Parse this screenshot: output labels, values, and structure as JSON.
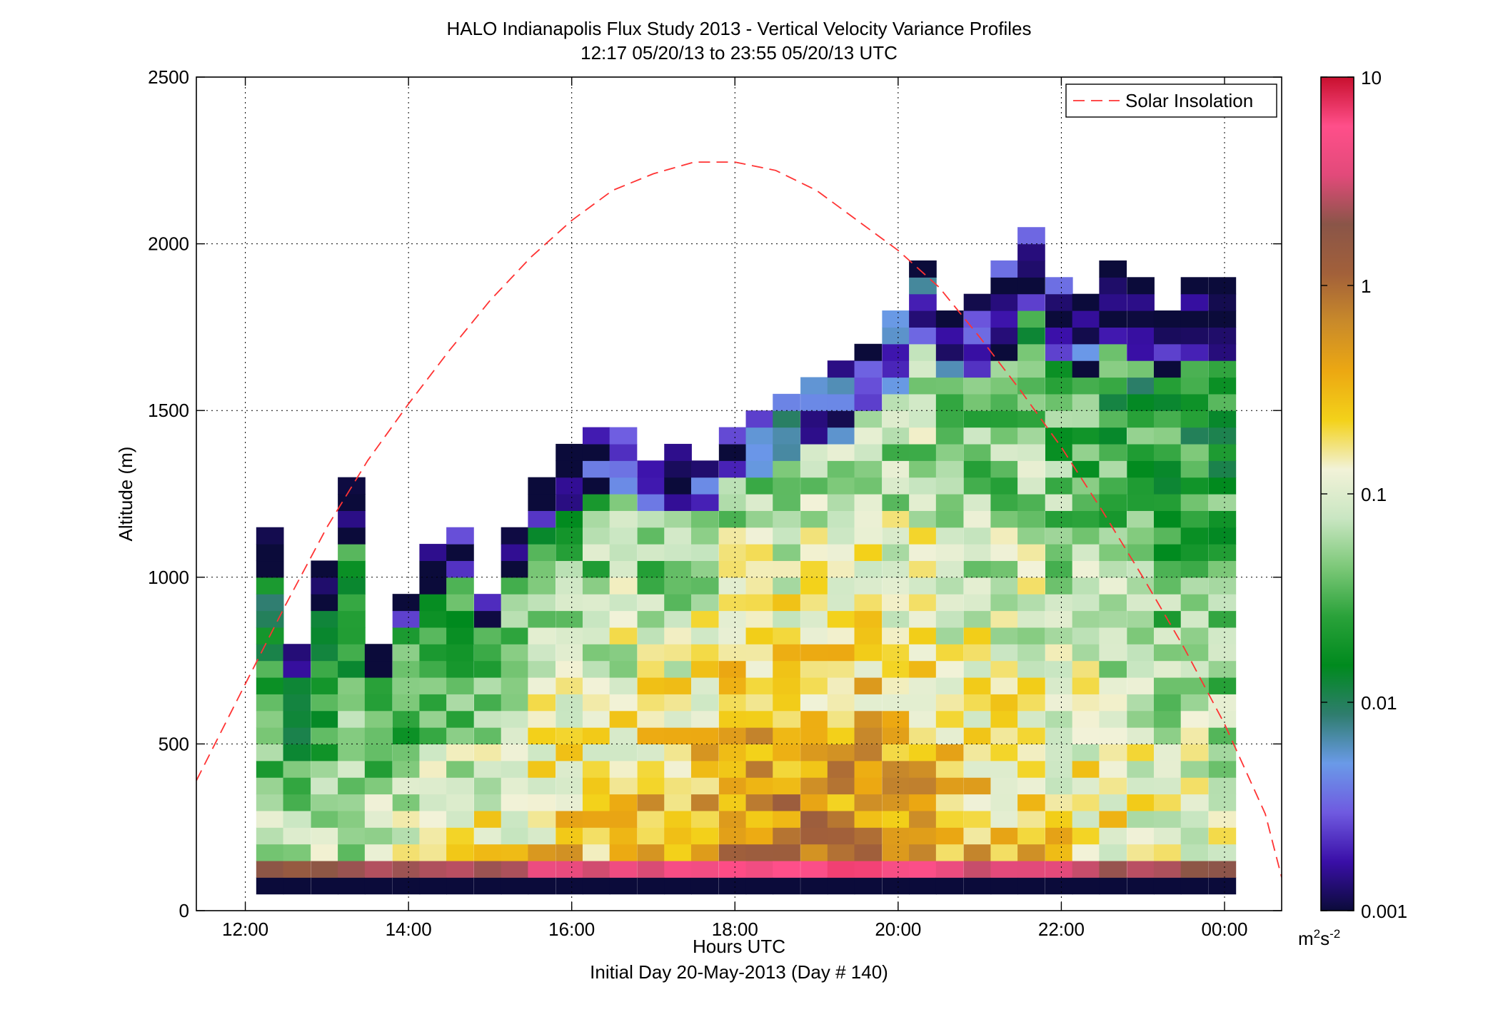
{
  "chart_data": {
    "type": "heatmap",
    "title": "HALO Indianapolis Flux Study 2013 - Vertical Velocity Variance Profiles",
    "subtitle": "12:17 05/20/13 to 23:55 05/20/13  UTC",
    "xlabel": "Hours UTC",
    "xlabel2": "Initial Day 20-May-2013 (Day # 140)",
    "ylabel": "Altitude (m)",
    "xlim": [
      11.4,
      24.7
    ],
    "ylim": [
      0,
      2500
    ],
    "x_ticks": [
      12,
      14,
      16,
      18,
      20,
      22,
      24
    ],
    "x_tick_labels": [
      "12:00",
      "14:00",
      "16:00",
      "18:00",
      "20:00",
      "22:00",
      "00:00"
    ],
    "y_ticks": [
      0,
      500,
      1000,
      1500,
      2000,
      2500
    ],
    "y_tick_labels": [
      "0",
      "500",
      "1000",
      "1500",
      "2000",
      "2500"
    ],
    "grid": true,
    "colorbar": {
      "scale": "log",
      "range": [
        0.001,
        10
      ],
      "ticks": [
        0.001,
        0.01,
        0.1,
        1,
        10
      ],
      "tick_labels": [
        "0.001",
        "0.01",
        "0.1",
        "1",
        "10"
      ],
      "unit_base": "m",
      "unit_sup1": "2",
      "unit_mid": "s",
      "unit_sup2": "-2",
      "colors": [
        "#0b0b3a",
        "#3a0fa8",
        "#6f5ae0",
        "#6a9ae8",
        "#2f7d6e",
        "#008a1e",
        "#2aa23a",
        "#7cc878",
        "#c9e6c2",
        "#f2f2d8",
        "#f3d21a",
        "#eca812",
        "#c98a2a",
        "#a2603a",
        "#8a5548",
        "#e24a7a",
        "#ff4f8a",
        "#c8102e"
      ]
    },
    "legend": {
      "position": "top-right",
      "entries": [
        "Solar Insolation"
      ]
    },
    "solar_insolation": {
      "name": "Solar Insolation",
      "color": "#ff3333",
      "style": "dashed",
      "x": [
        11.4,
        12.0,
        12.5,
        13.0,
        13.5,
        14.0,
        14.5,
        15.0,
        15.5,
        16.0,
        16.5,
        17.0,
        17.5,
        18.0,
        18.5,
        19.0,
        19.5,
        20.0,
        20.5,
        21.0,
        21.5,
        22.0,
        22.5,
        23.0,
        23.5,
        24.0,
        24.5,
        24.7
      ],
      "y": [
        390,
        680,
        920,
        1150,
        1350,
        1520,
        1680,
        1830,
        1960,
        2070,
        2160,
        2210,
        2245,
        2245,
        2220,
        2160,
        2070,
        1980,
        1870,
        1720,
        1560,
        1390,
        1200,
        1000,
        790,
        560,
        290,
        100
      ]
    },
    "time_bins": [
      12.3,
      12.63,
      12.97,
      13.3,
      13.63,
      13.97,
      14.3,
      14.63,
      14.97,
      15.3,
      15.63,
      15.97,
      16.3,
      16.63,
      16.97,
      17.3,
      17.63,
      17.97,
      18.3,
      18.63,
      18.97,
      19.3,
      19.63,
      19.97,
      20.3,
      20.63,
      20.97,
      21.3,
      21.63,
      21.97,
      22.3,
      22.63,
      22.97,
      23.3,
      23.63,
      23.97
    ],
    "bin_width_hours": 0.333,
    "altitude_bin_m": 50,
    "profile_tops_m": [
      1150,
      760,
      1030,
      1270,
      800,
      950,
      1070,
      1150,
      950,
      1110,
      1300,
      1380,
      1410,
      1410,
      1340,
      1380,
      1340,
      1450,
      1490,
      1540,
      1570,
      1610,
      1690,
      1760,
      1950,
      1800,
      1850,
      1910,
      2030,
      1900,
      1850,
      1950,
      1880,
      1800,
      1880,
      1880
    ]
  }
}
